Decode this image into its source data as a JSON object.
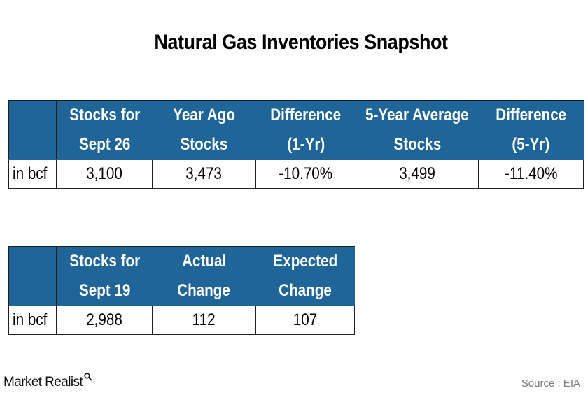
{
  "title": "Natural Gas Inventories Snapshot",
  "colors": {
    "header_bg": "#1f6597",
    "header_text": "#ffffff",
    "border": "#1f1f1f",
    "source_text": "#7a7a7a"
  },
  "chart_data": [
    {
      "type": "table",
      "columns": [
        {
          "line1": "Stocks for",
          "line2": "Sept 26"
        },
        {
          "line1": "Year Ago",
          "line2": "Stocks"
        },
        {
          "line1": "Difference",
          "line2": "(1-Yr)"
        },
        {
          "line1": "5-Year Average",
          "line2": "Stocks"
        },
        {
          "line1": "Difference",
          "line2": "(5-Yr)"
        }
      ],
      "row_label": "in bcf",
      "values": [
        "3,100",
        "3,473",
        "-10.70%",
        "3,499",
        "-11.40%"
      ]
    },
    {
      "type": "table",
      "columns": [
        {
          "line1": "Stocks for",
          "line2": "Sept 19"
        },
        {
          "line1": "Actual",
          "line2": "Change"
        },
        {
          "line1": "Expected",
          "line2": "Change"
        }
      ],
      "row_label": "in bcf",
      "values": [
        "2,988",
        "112",
        "107"
      ]
    }
  ],
  "footer": {
    "brand": "Market Realist",
    "brand_icon": "magnifier-icon",
    "source": "Source : EIA"
  }
}
